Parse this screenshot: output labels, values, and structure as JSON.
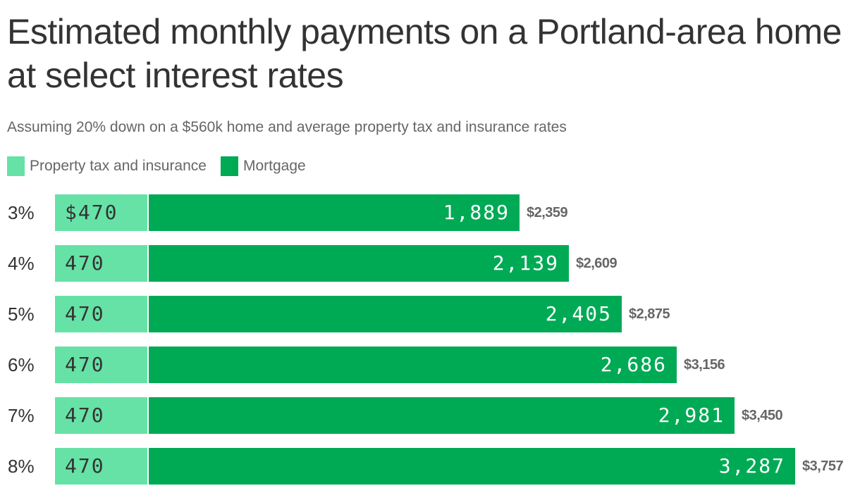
{
  "title": "Estimated monthly payments on a Portland-area home at select interest rates",
  "subtitle": "Assuming 20% down on a $560k home and average property tax and insurance rates",
  "colors": {
    "property_tax": "#66e2a6",
    "mortgage": "#00aa55",
    "text_dark": "#333333",
    "text_muted": "#666666"
  },
  "legend": [
    {
      "label": "Property tax and insurance",
      "color": "#66e2a6"
    },
    {
      "label": "Mortgage",
      "color": "#00aa55"
    }
  ],
  "rows": [
    {
      "rate": "3%",
      "tax_label": "$470",
      "mortgage_label": "1,889",
      "total_label": "$2,359"
    },
    {
      "rate": "4%",
      "tax_label": "470",
      "mortgage_label": "2,139",
      "total_label": "$2,609"
    },
    {
      "rate": "5%",
      "tax_label": "470",
      "mortgage_label": "2,405",
      "total_label": "$2,875"
    },
    {
      "rate": "6%",
      "tax_label": "470",
      "mortgage_label": "2,686",
      "total_label": "$3,156"
    },
    {
      "rate": "7%",
      "tax_label": "470",
      "mortgage_label": "2,981",
      "total_label": "$3,450"
    },
    {
      "rate": "8%",
      "tax_label": "470",
      "mortgage_label": "3,287",
      "total_label": "$3,757"
    }
  ],
  "chart_data": {
    "type": "bar",
    "orientation": "horizontal",
    "stacked": true,
    "title": "Estimated monthly payments on a Portland-area home at select interest rates",
    "subtitle": "Assuming 20% down on a $560k home and average property tax and insurance rates",
    "xlabel": "",
    "ylabel": "",
    "categories": [
      "3%",
      "4%",
      "5%",
      "6%",
      "7%",
      "8%"
    ],
    "series": [
      {
        "name": "Property tax and insurance",
        "color": "#66e2a6",
        "values": [
          470,
          470,
          470,
          470,
          470,
          470
        ]
      },
      {
        "name": "Mortgage",
        "color": "#00aa55",
        "values": [
          1889,
          2139,
          2405,
          2686,
          2981,
          3287
        ]
      }
    ],
    "totals": [
      2359,
      2609,
      2875,
      3156,
      3450,
      3757
    ],
    "value_prefix": "$",
    "grid": false,
    "legend_position": "top-left",
    "xlim": [
      0,
      3757
    ]
  }
}
